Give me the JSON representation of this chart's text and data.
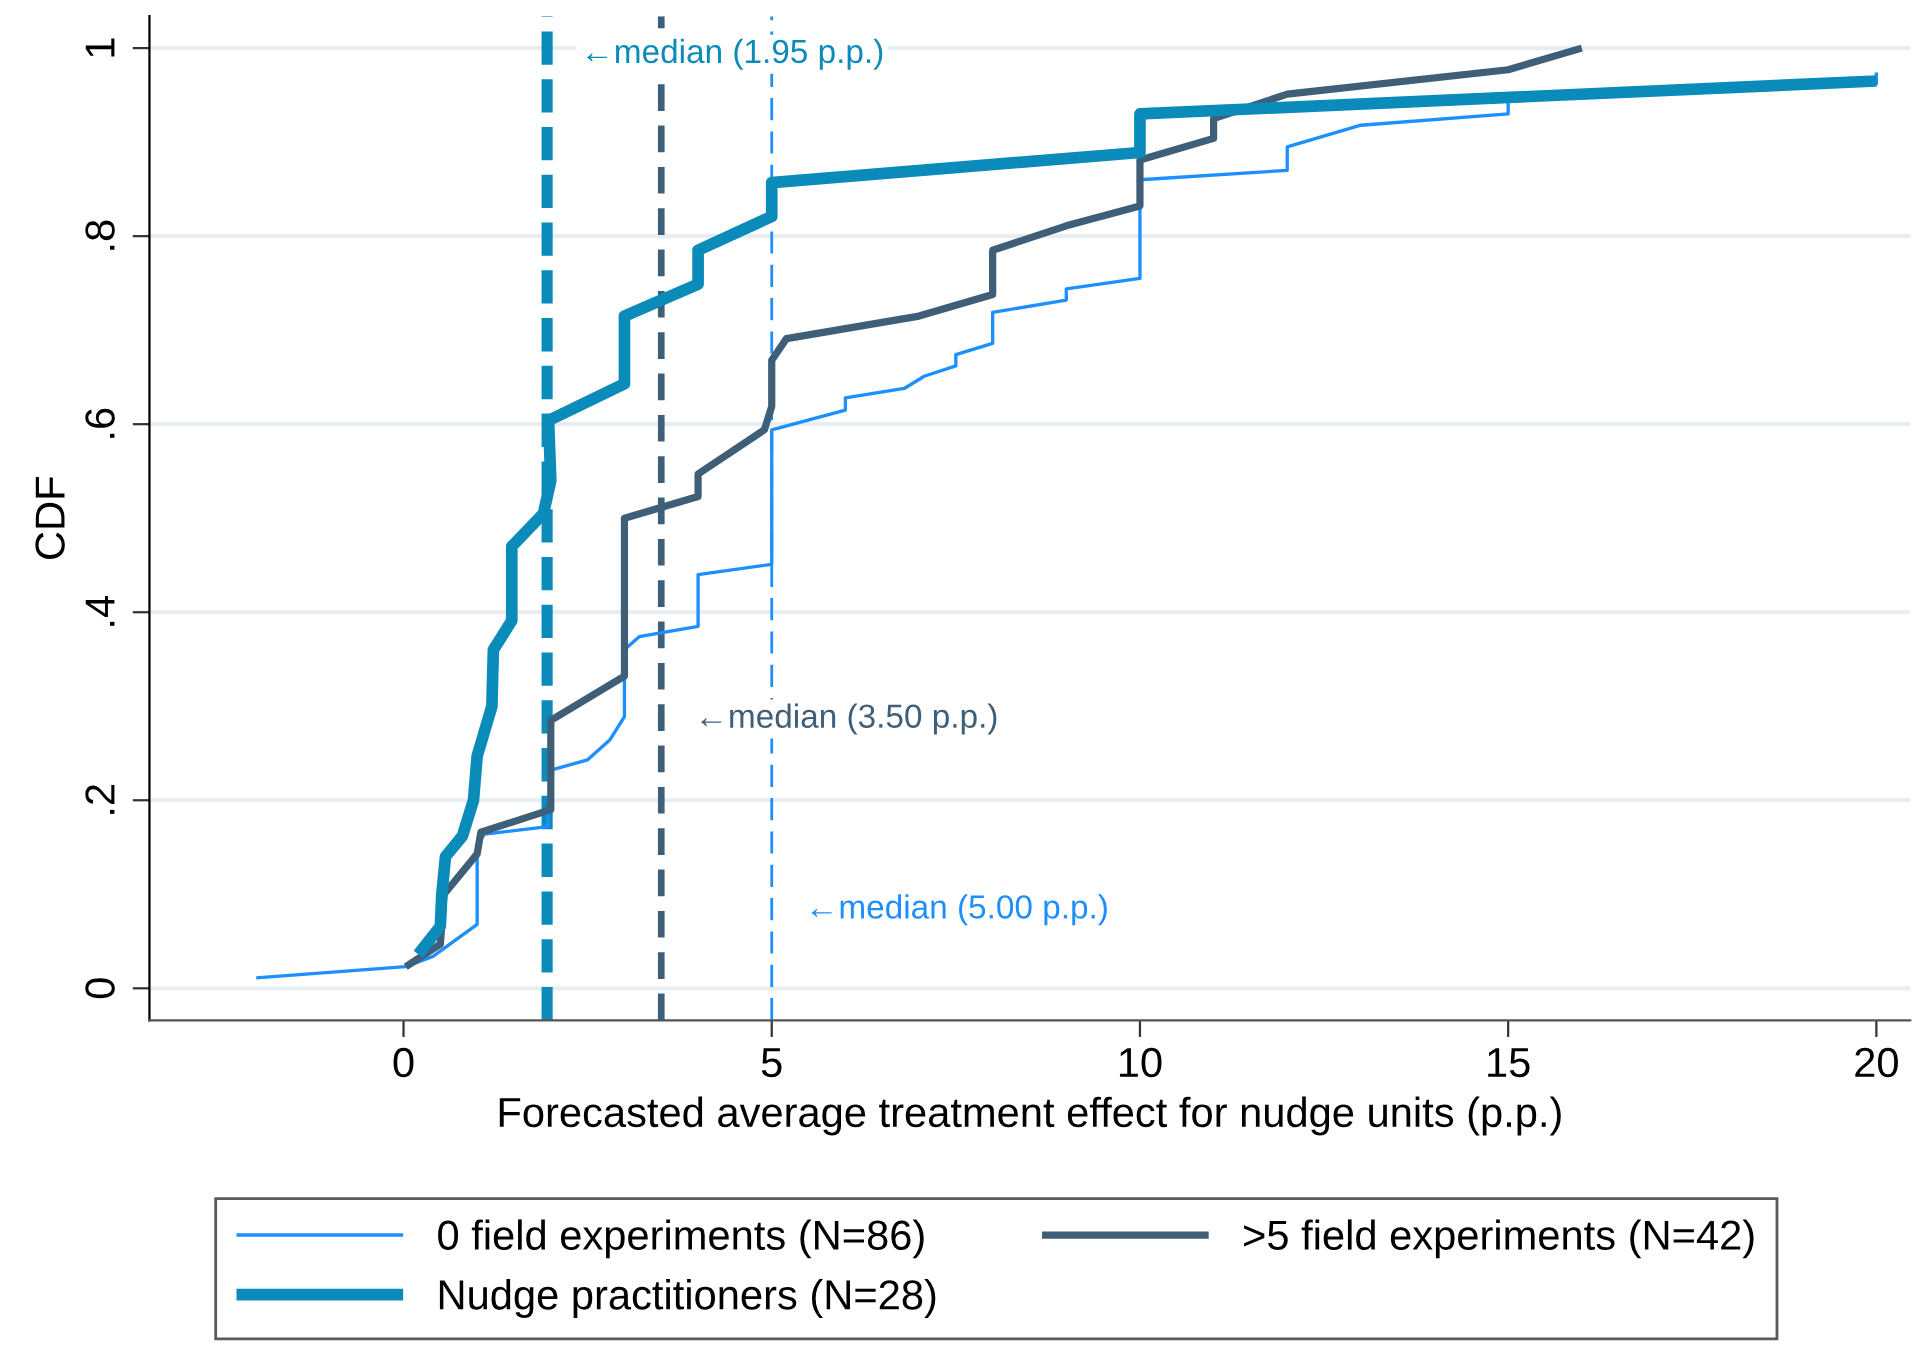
{
  "chart_data": {
    "type": "line",
    "xlabel": "Forecasted average treatment effect for nudge units (p.p.)",
    "ylabel": "CDF",
    "xlim": [
      -3.45,
      20.46
    ],
    "ylim": [
      -0.034,
      1.034
    ],
    "xticks": [
      0,
      5,
      10,
      15,
      20
    ],
    "yticks": [
      {
        "value": 0,
        "label": "0"
      },
      {
        "value": 0.2,
        "label": ".2"
      },
      {
        "value": 0.4,
        "label": ".4"
      },
      {
        "value": 0.6,
        "label": ".6"
      },
      {
        "value": 0.8,
        "label": ".8"
      },
      {
        "value": 1,
        "label": "1"
      }
    ],
    "grid": "y",
    "legend": "bottom",
    "line_style": "solid",
    "marker": "none",
    "series": [
      {
        "name": "0 field experiments (N=86)",
        "color": "#1e8fff",
        "x": [
          -2.0,
          0.03,
          0.4,
          1.0,
          1.0,
          1.1,
          1.96,
          2.0,
          2.5,
          2.8,
          3.0,
          3.0,
          3.2,
          4.0,
          4.0,
          5.0,
          5.0,
          6.0,
          6.0,
          6.8,
          7.07,
          7.5,
          7.5,
          8.0,
          8.0,
          9.0,
          9.0,
          10.0,
          10.0,
          12.0,
          12.0,
          13.0,
          15.0,
          15.0,
          20.0,
          20.0
        ],
        "values": [
          0.011,
          0.023,
          0.034,
          0.068,
          0.153,
          0.164,
          0.172,
          0.232,
          0.243,
          0.264,
          0.289,
          0.36,
          0.374,
          0.385,
          0.44,
          0.451,
          0.594,
          0.615,
          0.628,
          0.638,
          0.651,
          0.662,
          0.674,
          0.686,
          0.719,
          0.732,
          0.744,
          0.755,
          0.86,
          0.87,
          0.895,
          0.918,
          0.93,
          0.951,
          0.962,
          0.974
        ]
      },
      {
        "name": ">5 field experiments (N=42)",
        "color": "#3f5f78",
        "x": [
          0.03,
          0.5,
          0.55,
          1.0,
          1.05,
          2.0,
          2.0,
          3.0,
          3.0,
          4.0,
          4.0,
          4.9,
          5.0,
          5.0,
          5.2,
          7.0,
          8.0,
          8.0,
          9.0,
          10.0,
          10.0,
          11.0,
          11.0,
          12.0,
          15.0,
          16.0
        ],
        "values": [
          0.023,
          0.047,
          0.1,
          0.143,
          0.166,
          0.19,
          0.285,
          0.332,
          0.5,
          0.523,
          0.547,
          0.594,
          0.619,
          0.668,
          0.691,
          0.715,
          0.738,
          0.785,
          0.811,
          0.832,
          0.881,
          0.904,
          0.925,
          0.951,
          0.977,
          1.0
        ]
      },
      {
        "name": "Nudge practitioners (N=28)",
        "color": "#0a8bba",
        "x": [
          0.2,
          0.5,
          0.52,
          0.57,
          0.8,
          0.95,
          1.0,
          1.2,
          1.22,
          1.47,
          1.47,
          1.9,
          2.0,
          1.97,
          3.0,
          3.0,
          4.0,
          4.0,
          5.0,
          5.0,
          10.0,
          10.0,
          20.0
        ],
        "values": [
          0.036,
          0.066,
          0.1,
          0.14,
          0.162,
          0.2,
          0.247,
          0.3,
          0.36,
          0.391,
          0.47,
          0.505,
          0.54,
          0.604,
          0.643,
          0.715,
          0.749,
          0.785,
          0.821,
          0.857,
          0.889,
          0.93,
          0.965
        ]
      }
    ],
    "ref_lines": [
      {
        "axis": "x",
        "value": 1.95,
        "color": "#0a8bba",
        "line_style": "dashed",
        "label": "←median (1.95 p.p.)"
      },
      {
        "axis": "x",
        "value": 3.5,
        "color": "#3f5f78",
        "line_style": "dashed",
        "label": "←median (3.50 p.p.)"
      },
      {
        "axis": "x",
        "value": 5.0,
        "color": "#1e8fff",
        "line_style": "dashed",
        "label": "←median (5.00 p.p.)"
      }
    ]
  }
}
